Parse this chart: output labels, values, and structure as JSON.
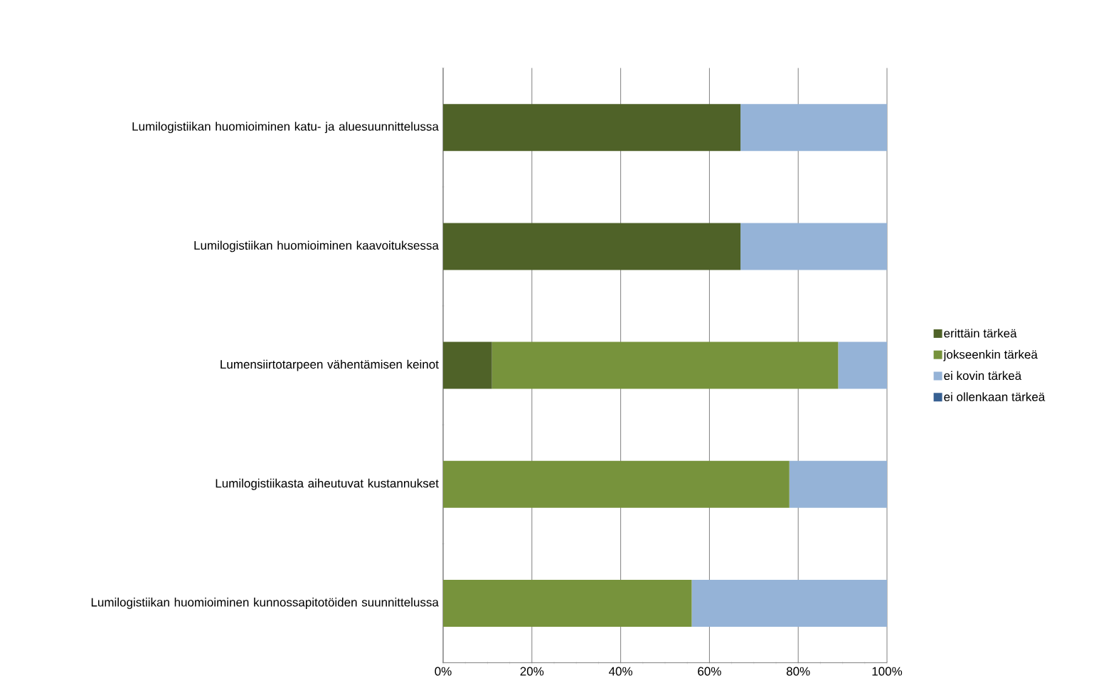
{
  "chart_data": {
    "type": "bar",
    "orientation": "horizontal",
    "stacked": true,
    "categories": [
      "Lumilogistiikan huomioiminen katu- ja aluesuunnittelussa",
      "Lumilogistiikan huomioiminen kaavoituksessa",
      "Lumensiirtotarpeen vähentämisen keinot",
      "Lumilogistiikasta aiheutuvat kustannukset",
      "Lumilogistiikan huomioiminen kunnossapitotöiden suunnittelussa"
    ],
    "series": [
      {
        "name": "erittäin tärkeä",
        "color": "#4f6228",
        "values": [
          67,
          67,
          11,
          0,
          0
        ]
      },
      {
        "name": "jokseenkin tärkeä",
        "color": "#77933c",
        "values": [
          0,
          0,
          78,
          78,
          56
        ]
      },
      {
        "name": "ei kovin tärkeä",
        "color": "#95b3d7",
        "values": [
          33,
          33,
          11,
          22,
          44
        ]
      },
      {
        "name": "ei ollenkaan tärkeä",
        "color": "#376092",
        "values": [
          0,
          0,
          0,
          0,
          0
        ]
      }
    ],
    "xlim": [
      0,
      100
    ],
    "xticks": [
      {
        "value": 0,
        "label": "0%"
      },
      {
        "value": 20,
        "label": "20%"
      },
      {
        "value": 40,
        "label": "40%"
      },
      {
        "value": 60,
        "label": "60%"
      },
      {
        "value": 80,
        "label": "80%"
      },
      {
        "value": 100,
        "label": "100%"
      }
    ],
    "grid": "x",
    "legend": "right"
  }
}
